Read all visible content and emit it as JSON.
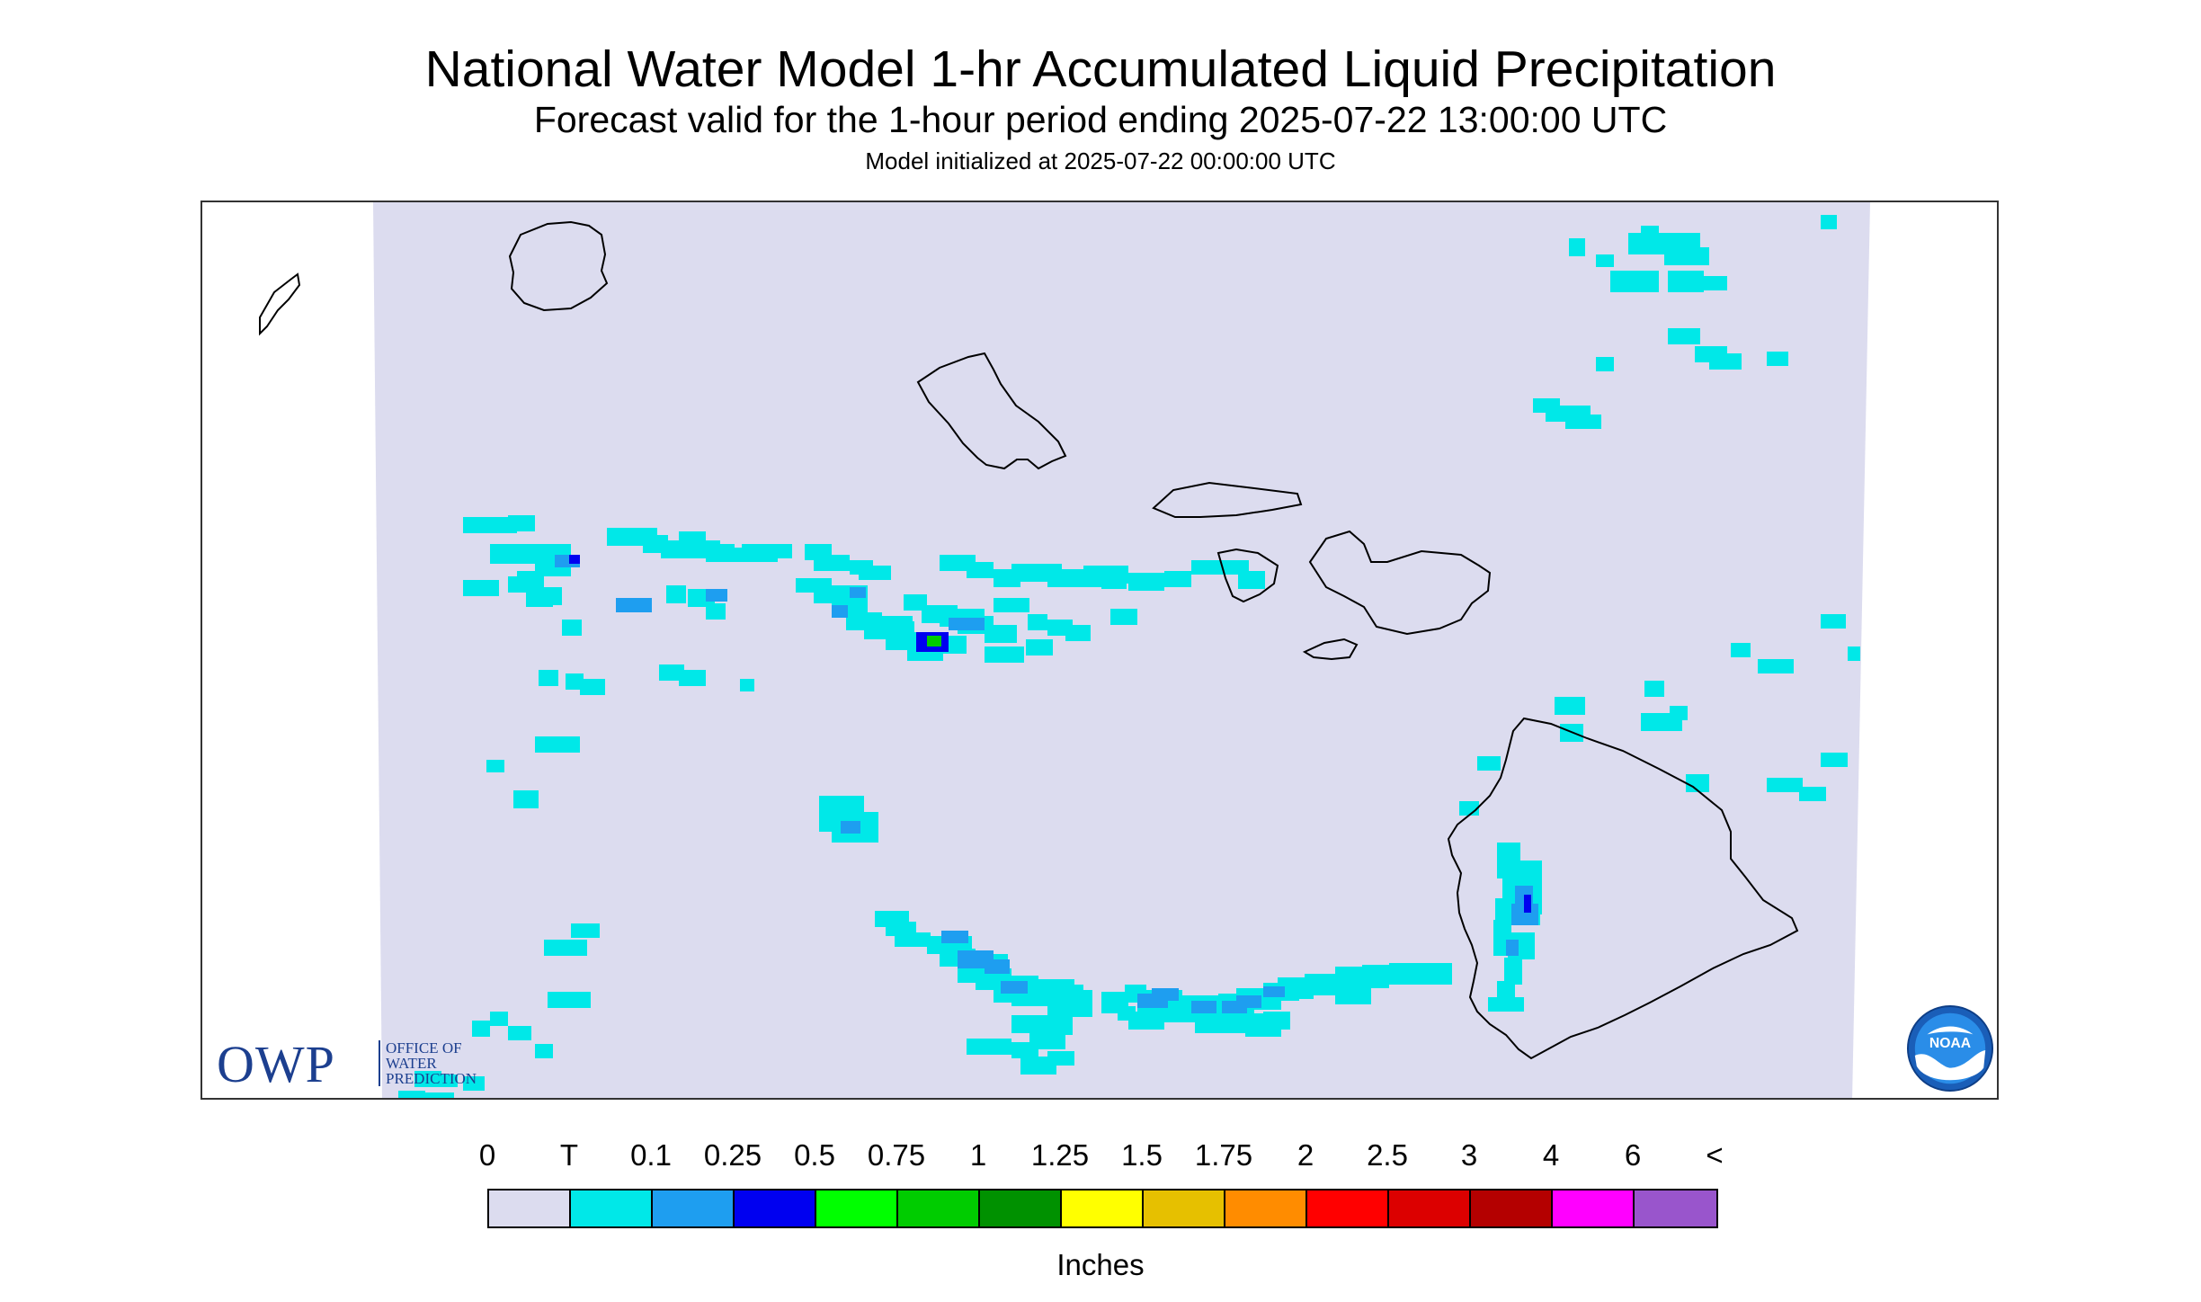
{
  "header": {
    "title": "National Water Model 1-hr Accumulated Liquid Precipitation",
    "subtitle": "Forecast valid for the 1-hour period ending 2025-07-22 13:00:00 UTC",
    "init": "Model initialized at 2025-07-22 00:00:00 UTC"
  },
  "map": {
    "domain_fill": "#dcdcef",
    "coastline_color": "#000000",
    "islands": [
      "Niihau",
      "Kauai",
      "Oahu",
      "Molokai",
      "Lanai",
      "Maui",
      "Kahoolawe",
      "Hawaii"
    ],
    "owp_logo": {
      "letters": "OWP",
      "line1": "OFFICE OF",
      "line2": "WATER",
      "line3": "PREDICTION"
    },
    "noaa_logo": {
      "text": "NOAA"
    }
  },
  "legend": {
    "labels": [
      "0",
      "T",
      "0.1",
      "0.25",
      "0.5",
      "0.75",
      "1",
      "1.25",
      "1.5",
      "1.75",
      "2",
      "2.5",
      "3",
      "4",
      "6",
      "<"
    ],
    "colors": [
      "#dcdcef",
      "#00e8e8",
      "#1e9ef0",
      "#0000f0",
      "#00ff00",
      "#00cc00",
      "#009100",
      "#ffff00",
      "#e6c000",
      "#ff8c00",
      "#ff0000",
      "#dc0000",
      "#b40000",
      "#ff00ff",
      "#9955cc"
    ],
    "unit": "Inches"
  }
}
